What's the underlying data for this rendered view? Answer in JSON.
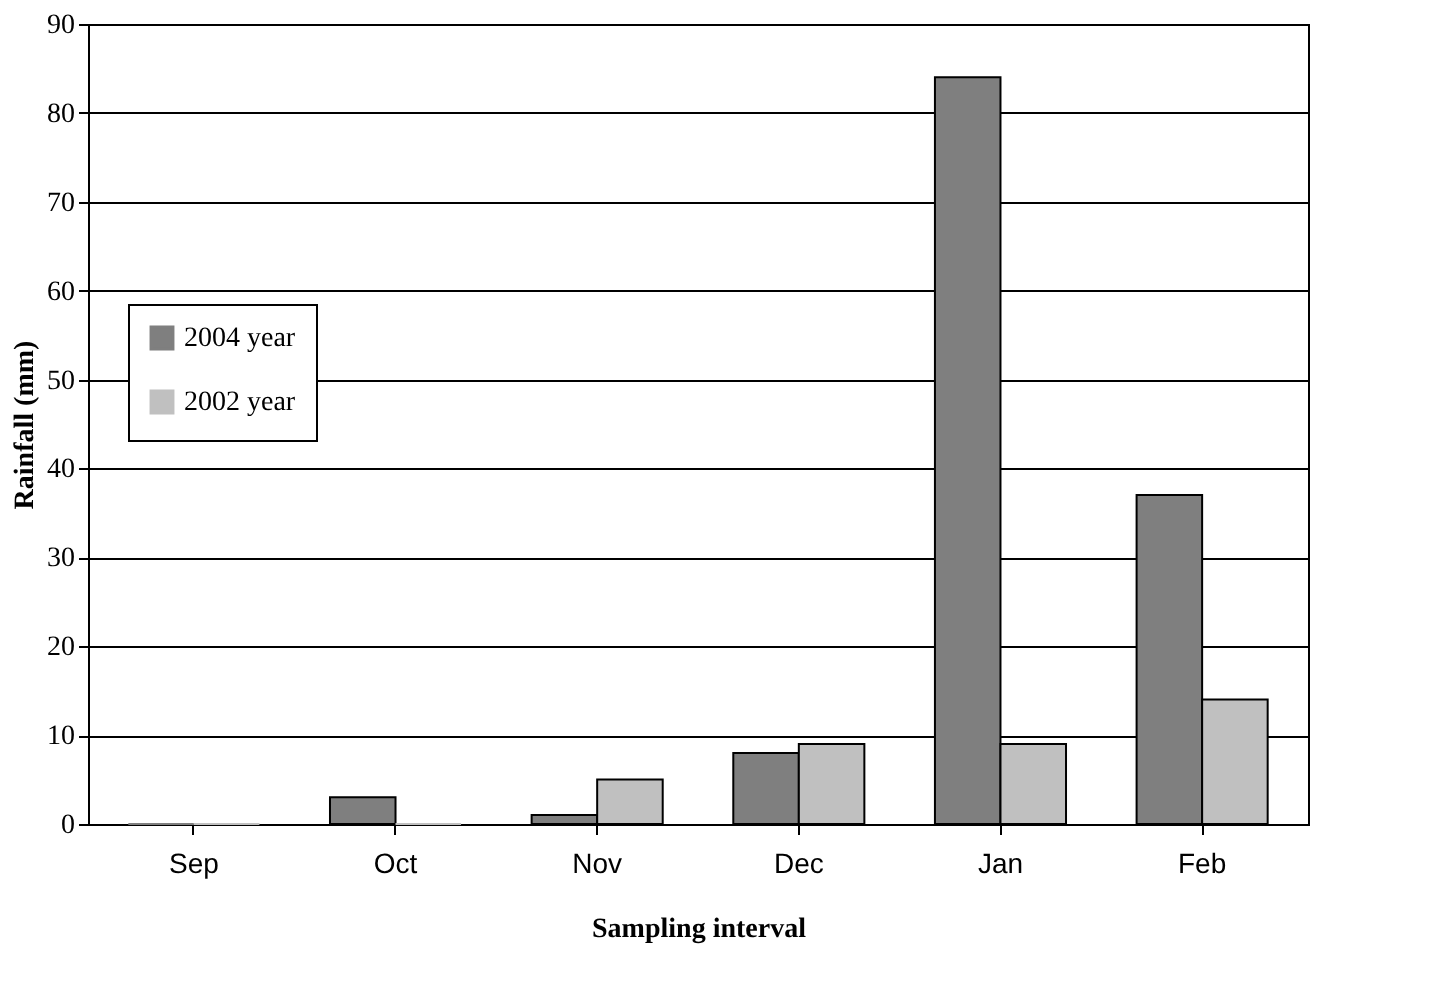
{
  "chart_data": {
    "type": "bar",
    "xlabel": "Sampling interval",
    "ylabel": "Rainfall (mm)",
    "categories": [
      "Sep",
      "Oct",
      "Nov",
      "Dec",
      "Jan",
      "Feb"
    ],
    "series": [
      {
        "name": "2004 year",
        "color": "#7f7f7f",
        "values": [
          0,
          3,
          1,
          8,
          84,
          37
        ]
      },
      {
        "name": "2002 year",
        "color": "#c0c0c0",
        "values": [
          0,
          0,
          5,
          9,
          9,
          14
        ]
      }
    ],
    "ylim": [
      0,
      90
    ],
    "yticks": [
      0,
      10,
      20,
      30,
      40,
      50,
      60,
      70,
      80,
      90
    ],
    "grid": "y",
    "legend": "left"
  }
}
